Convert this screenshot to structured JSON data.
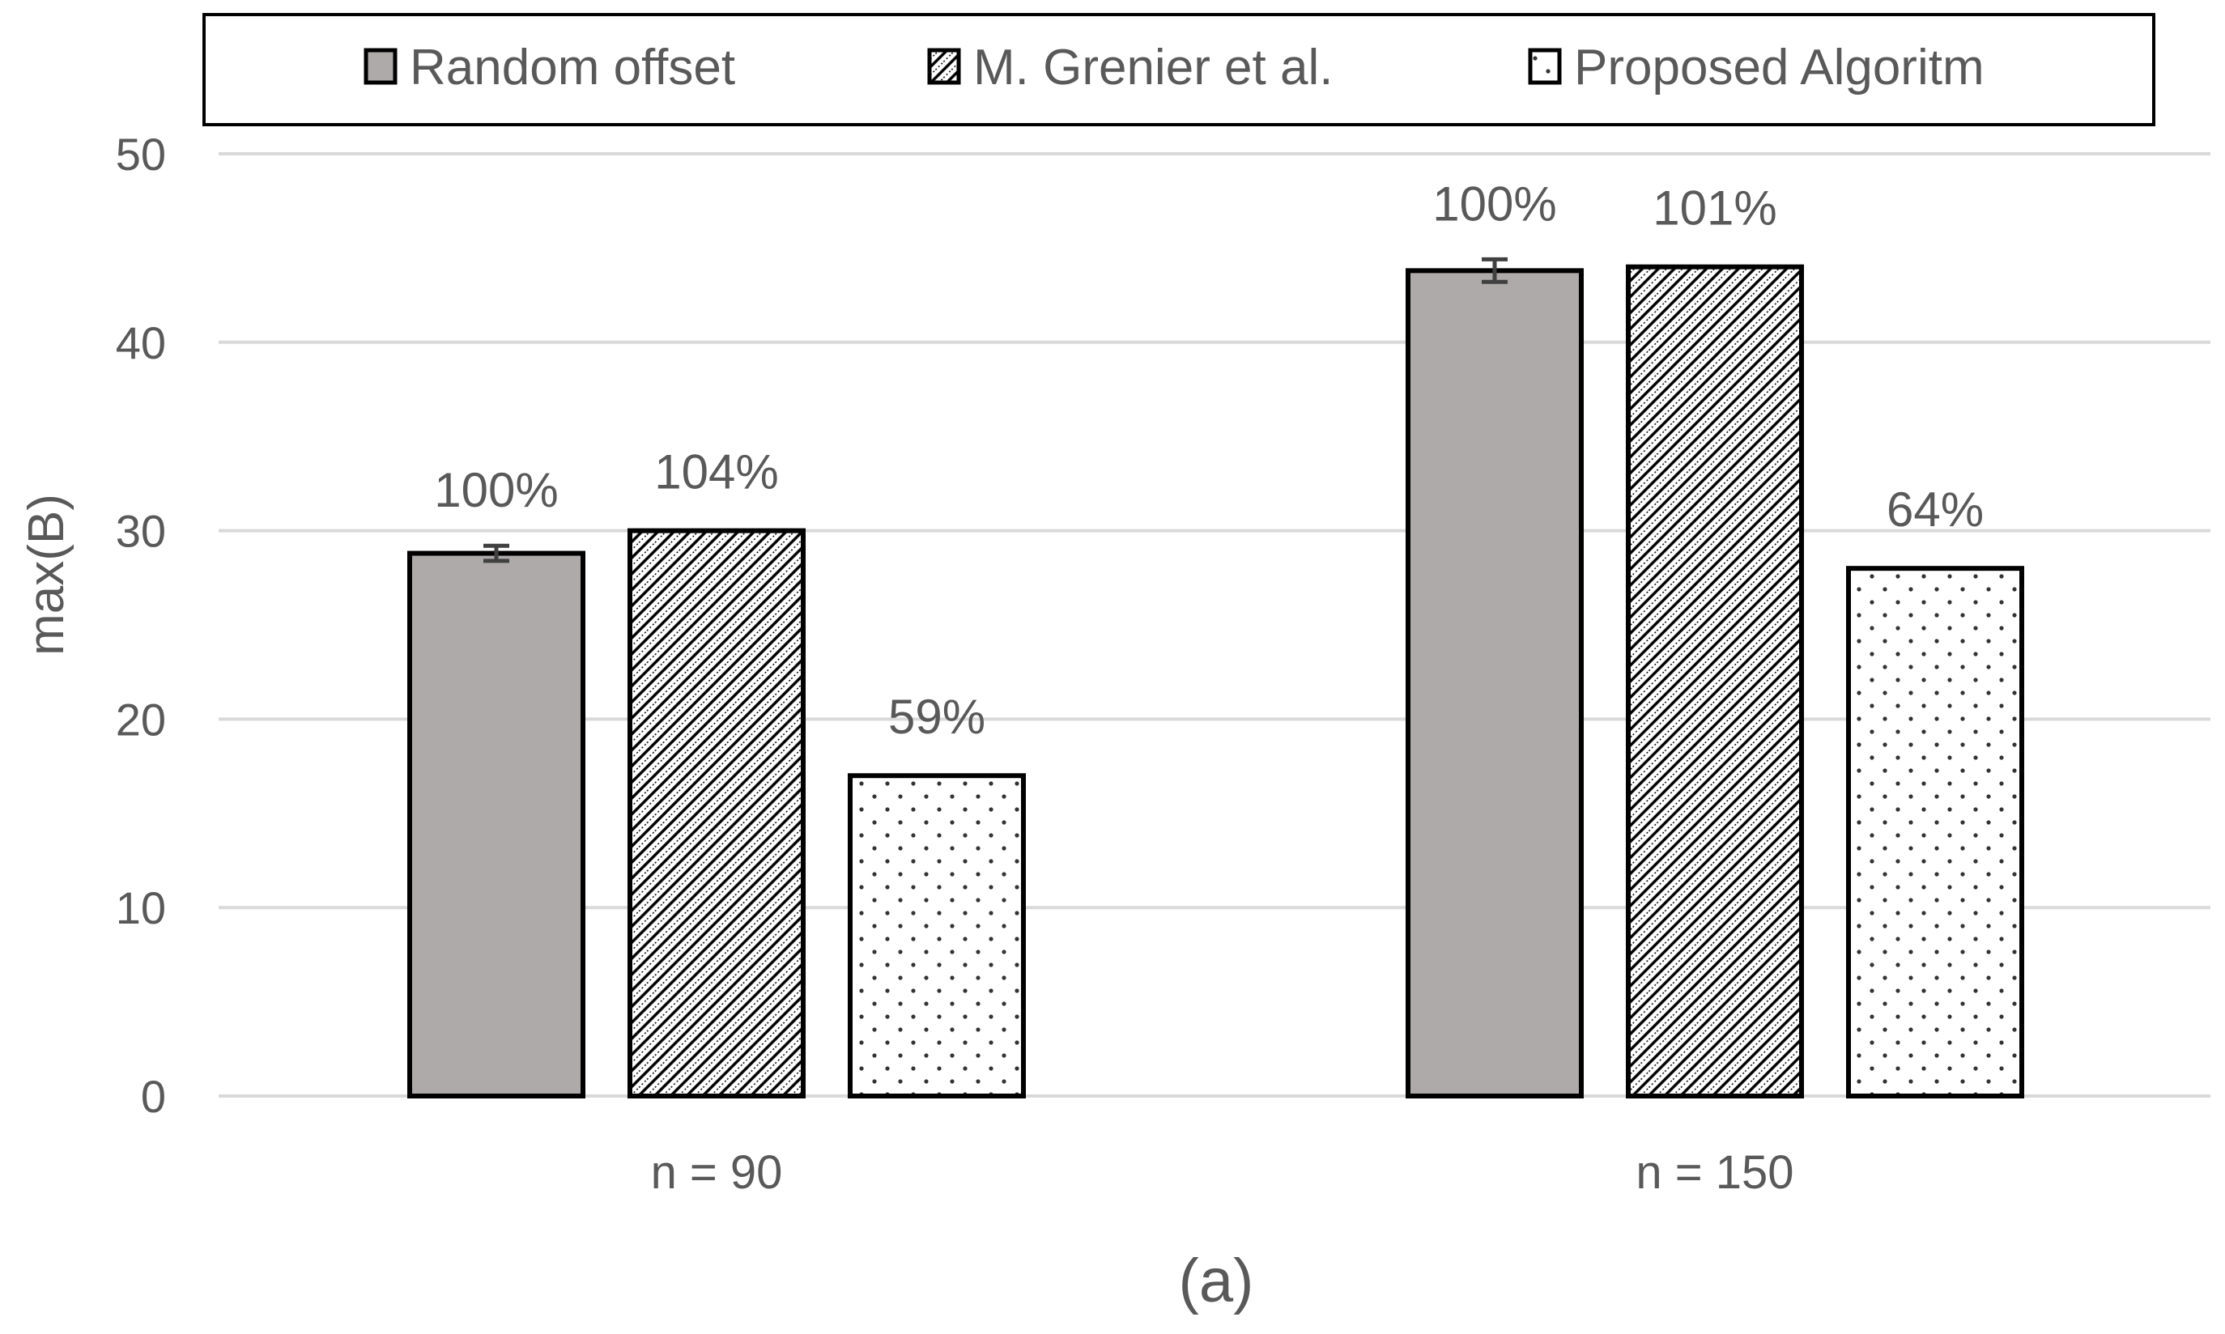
{
  "chart_data": {
    "type": "bar",
    "title": "",
    "xlabel": "",
    "ylabel": "max(B)",
    "ylim": [
      0,
      50
    ],
    "yticks": [
      0,
      10,
      20,
      30,
      40,
      50
    ],
    "grid": true,
    "legend_position": "top",
    "categories": [
      "n = 90",
      "n = 150"
    ],
    "series": [
      {
        "name": "Random offset",
        "pattern": "solid-gray",
        "color": "#aeaaaa",
        "values": [
          28.8,
          43.8
        ],
        "error": [
          0.4,
          0.6
        ],
        "data_labels": [
          "100%",
          "100%"
        ]
      },
      {
        "name": "M. Grenier et al.",
        "pattern": "diagonal-hatch",
        "color": "#000000",
        "values": [
          30,
          44
        ],
        "data_labels": [
          "104%",
          "101%"
        ]
      },
      {
        "name": "Proposed Algoritm",
        "pattern": "dots",
        "color": "#000000",
        "values": [
          17,
          28
        ],
        "data_labels": [
          "59%",
          "64%"
        ]
      }
    ],
    "caption": "(a)"
  }
}
